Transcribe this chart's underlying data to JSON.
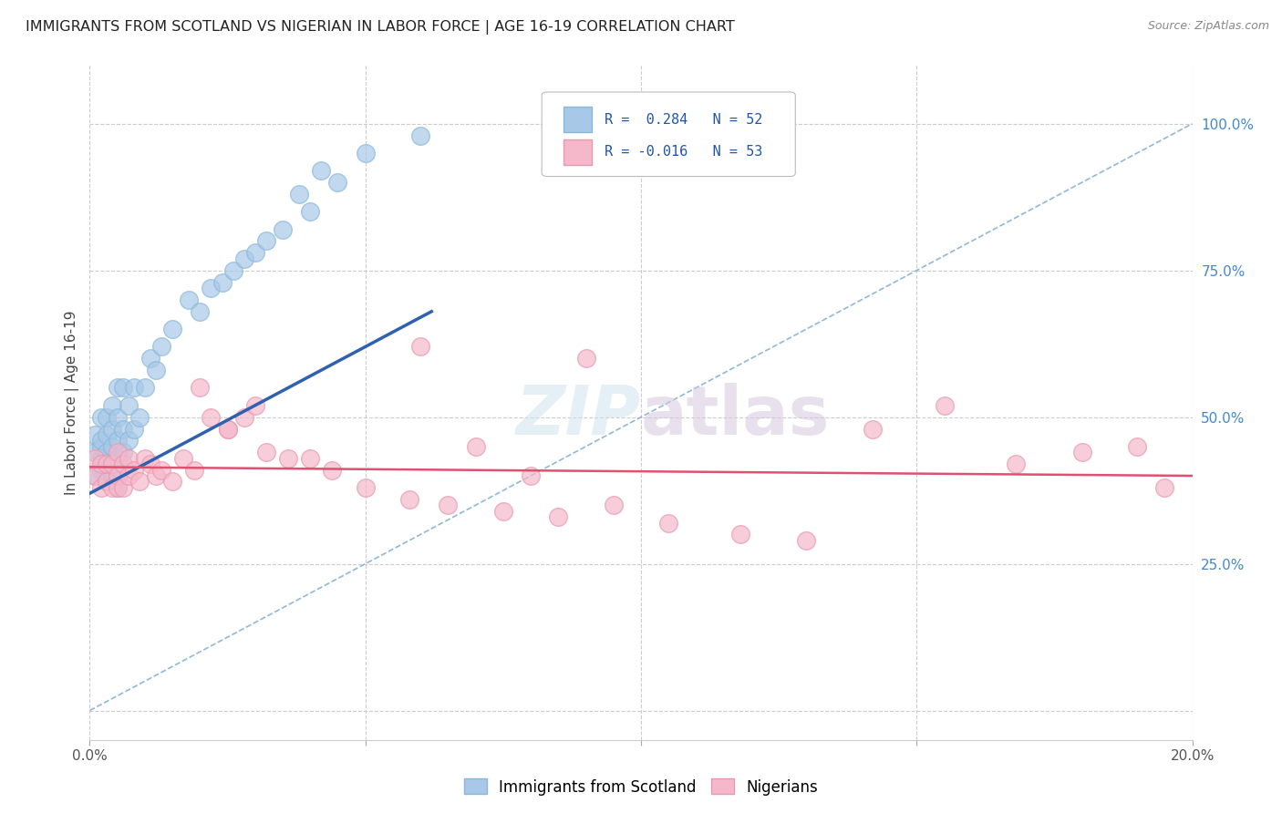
{
  "title": "IMMIGRANTS FROM SCOTLAND VS NIGERIAN IN LABOR FORCE | AGE 16-19 CORRELATION CHART",
  "source": "Source: ZipAtlas.com",
  "ylabel": "In Labor Force | Age 16-19",
  "watermark": "ZIPatlas",
  "xlim": [
    0.0,
    0.2
  ],
  "ylim": [
    -0.05,
    1.1
  ],
  "scotland_color": "#a8c8e8",
  "nigeria_color": "#f5b8cb",
  "scotland_edge": "#8ab8d8",
  "nigeria_edge": "#e898b0",
  "line_scotland": "#3060b0",
  "line_nigeria": "#e05070",
  "ref_line_color": "#90b8d8",
  "background": "#ffffff",
  "grid_color": "#cccccc",
  "scot_x": [
    0.001,
    0.001,
    0.001,
    0.002,
    0.002,
    0.002,
    0.002,
    0.002,
    0.003,
    0.003,
    0.003,
    0.003,
    0.003,
    0.004,
    0.004,
    0.004,
    0.004,
    0.004,
    0.005,
    0.005,
    0.005,
    0.005,
    0.005,
    0.005,
    0.006,
    0.006,
    0.006,
    0.007,
    0.007,
    0.008,
    0.008,
    0.009,
    0.01,
    0.011,
    0.012,
    0.013,
    0.015,
    0.018,
    0.02,
    0.022,
    0.024,
    0.026,
    0.028,
    0.03,
    0.032,
    0.035,
    0.038,
    0.04,
    0.042,
    0.045,
    0.05,
    0.06
  ],
  "scot_y": [
    0.4,
    0.44,
    0.47,
    0.41,
    0.43,
    0.45,
    0.46,
    0.5,
    0.39,
    0.42,
    0.44,
    0.47,
    0.5,
    0.4,
    0.42,
    0.45,
    0.48,
    0.52,
    0.38,
    0.4,
    0.43,
    0.46,
    0.5,
    0.55,
    0.44,
    0.48,
    0.55,
    0.46,
    0.52,
    0.48,
    0.55,
    0.5,
    0.55,
    0.6,
    0.58,
    0.62,
    0.65,
    0.7,
    0.68,
    0.72,
    0.73,
    0.75,
    0.77,
    0.78,
    0.8,
    0.82,
    0.88,
    0.85,
    0.92,
    0.9,
    0.95,
    0.98
  ],
  "nig_x": [
    0.001,
    0.001,
    0.002,
    0.002,
    0.003,
    0.003,
    0.004,
    0.004,
    0.005,
    0.005,
    0.005,
    0.006,
    0.006,
    0.007,
    0.007,
    0.008,
    0.009,
    0.01,
    0.011,
    0.012,
    0.013,
    0.015,
    0.017,
    0.019,
    0.022,
    0.025,
    0.028,
    0.032,
    0.036,
    0.04,
    0.044,
    0.05,
    0.058,
    0.065,
    0.075,
    0.085,
    0.095,
    0.105,
    0.118,
    0.13,
    0.142,
    0.155,
    0.168,
    0.18,
    0.19,
    0.195,
    0.03,
    0.02,
    0.025,
    0.06,
    0.07,
    0.08,
    0.09
  ],
  "nig_y": [
    0.4,
    0.43,
    0.38,
    0.42,
    0.39,
    0.42,
    0.38,
    0.42,
    0.38,
    0.4,
    0.44,
    0.38,
    0.42,
    0.4,
    0.43,
    0.41,
    0.39,
    0.43,
    0.42,
    0.4,
    0.41,
    0.39,
    0.43,
    0.41,
    0.5,
    0.48,
    0.5,
    0.44,
    0.43,
    0.43,
    0.41,
    0.38,
    0.36,
    0.35,
    0.34,
    0.33,
    0.35,
    0.32,
    0.3,
    0.29,
    0.48,
    0.52,
    0.42,
    0.44,
    0.45,
    0.38,
    0.52,
    0.55,
    0.48,
    0.62,
    0.45,
    0.4,
    0.6
  ],
  "scot_line_x": [
    0.0,
    0.062
  ],
  "scot_line_y": [
    0.37,
    0.68
  ],
  "nig_line_x": [
    0.0,
    0.2
  ],
  "nig_line_y": [
    0.415,
    0.4
  ]
}
